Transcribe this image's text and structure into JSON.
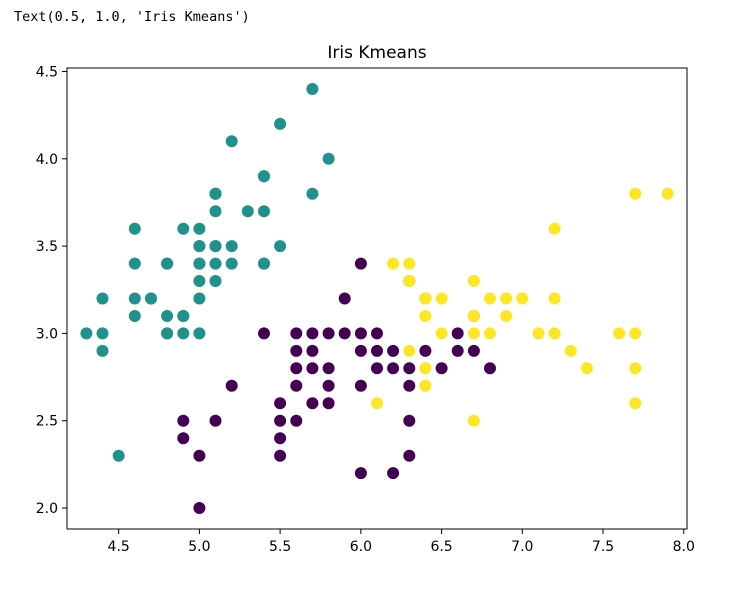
{
  "output_text": "Text(0.5, 1.0, 'Iris Kmeans')",
  "chart_data": {
    "type": "scatter",
    "title": "Iris Kmeans",
    "xlabel": "",
    "ylabel": "",
    "xlim": [
      4.18,
      8.02
    ],
    "ylim": [
      1.88,
      4.52
    ],
    "xticks": [
      "4.5",
      "5.0",
      "5.5",
      "6.0",
      "6.5",
      "7.0",
      "7.5",
      "8.0"
    ],
    "yticks": [
      "2.0",
      "2.5",
      "3.0",
      "3.5",
      "4.0",
      "4.5"
    ],
    "grid": false,
    "legend": "none",
    "clusters": [
      {
        "color": "#21918c",
        "points": [
          [
            5.1,
            3.5
          ],
          [
            4.9,
            3.0
          ],
          [
            4.7,
            3.2
          ],
          [
            4.6,
            3.1
          ],
          [
            5.0,
            3.6
          ],
          [
            5.4,
            3.9
          ],
          [
            4.6,
            3.4
          ],
          [
            5.0,
            3.4
          ],
          [
            4.4,
            2.9
          ],
          [
            4.9,
            3.1
          ],
          [
            5.4,
            3.7
          ],
          [
            4.8,
            3.4
          ],
          [
            4.8,
            3.0
          ],
          [
            4.3,
            3.0
          ],
          [
            5.8,
            4.0
          ],
          [
            5.7,
            4.4
          ],
          [
            5.4,
            3.9
          ],
          [
            5.1,
            3.5
          ],
          [
            5.7,
            3.8
          ],
          [
            5.1,
            3.8
          ],
          [
            5.4,
            3.4
          ],
          [
            5.1,
            3.7
          ],
          [
            4.6,
            3.6
          ],
          [
            5.1,
            3.3
          ],
          [
            4.8,
            3.4
          ],
          [
            5.0,
            3.0
          ],
          [
            5.0,
            3.4
          ],
          [
            5.2,
            3.5
          ],
          [
            5.2,
            3.4
          ],
          [
            4.7,
            3.2
          ],
          [
            4.8,
            3.1
          ],
          [
            5.4,
            3.4
          ],
          [
            5.2,
            4.1
          ],
          [
            5.5,
            4.2
          ],
          [
            4.9,
            3.1
          ],
          [
            5.0,
            3.2
          ],
          [
            5.5,
            3.5
          ],
          [
            4.9,
            3.6
          ],
          [
            4.4,
            3.0
          ],
          [
            5.1,
            3.4
          ],
          [
            5.0,
            3.5
          ],
          [
            4.5,
            2.3
          ],
          [
            4.4,
            3.2
          ],
          [
            5.0,
            3.5
          ],
          [
            5.1,
            3.8
          ],
          [
            4.8,
            3.0
          ],
          [
            5.1,
            3.8
          ],
          [
            4.6,
            3.2
          ],
          [
            5.3,
            3.7
          ],
          [
            5.0,
            3.3
          ]
        ]
      },
      {
        "color": "#440154",
        "points": [
          [
            6.0,
            3.4
          ],
          [
            5.9,
            3.2
          ],
          [
            5.4,
            3.0
          ],
          [
            5.6,
            3.0
          ],
          [
            5.7,
            3.0
          ],
          [
            5.8,
            3.0
          ],
          [
            6.0,
            3.0
          ],
          [
            6.1,
            3.0
          ],
          [
            6.6,
            3.0
          ],
          [
            5.9,
            3.0
          ],
          [
            6.8,
            2.8
          ],
          [
            6.7,
            2.9
          ],
          [
            6.6,
            2.9
          ],
          [
            6.4,
            2.9
          ],
          [
            6.2,
            2.9
          ],
          [
            6.1,
            2.9
          ],
          [
            6.0,
            2.9
          ],
          [
            5.7,
            2.9
          ],
          [
            5.6,
            2.9
          ],
          [
            6.5,
            2.8
          ],
          [
            6.3,
            2.8
          ],
          [
            6.2,
            2.8
          ],
          [
            6.1,
            2.8
          ],
          [
            5.8,
            2.8
          ],
          [
            5.7,
            2.8
          ],
          [
            5.6,
            2.8
          ],
          [
            6.3,
            2.7
          ],
          [
            6.0,
            2.7
          ],
          [
            5.8,
            2.7
          ],
          [
            5.6,
            2.7
          ],
          [
            5.2,
            2.7
          ],
          [
            6.3,
            2.5
          ],
          [
            5.6,
            2.5
          ],
          [
            5.5,
            2.5
          ],
          [
            5.1,
            2.5
          ],
          [
            4.9,
            2.5
          ],
          [
            5.8,
            2.6
          ],
          [
            5.7,
            2.6
          ],
          [
            5.5,
            2.6
          ],
          [
            5.5,
            2.4
          ],
          [
            4.9,
            2.4
          ],
          [
            6.3,
            2.3
          ],
          [
            5.5,
            2.3
          ],
          [
            5.0,
            2.3
          ],
          [
            6.0,
            2.2
          ],
          [
            6.2,
            2.2
          ],
          [
            5.0,
            2.0
          ],
          [
            6.3,
            3.3
          ],
          [
            6.4,
            3.2
          ],
          [
            6.7,
            3.1
          ]
        ]
      },
      {
        "color": "#fde725",
        "points": [
          [
            7.9,
            3.8
          ],
          [
            7.7,
            3.8
          ],
          [
            7.2,
            3.6
          ],
          [
            6.2,
            3.4
          ],
          [
            6.3,
            3.4
          ],
          [
            6.3,
            3.3
          ],
          [
            6.7,
            3.3
          ],
          [
            6.4,
            3.2
          ],
          [
            6.5,
            3.2
          ],
          [
            6.8,
            3.2
          ],
          [
            6.9,
            3.2
          ],
          [
            7.0,
            3.2
          ],
          [
            7.2,
            3.2
          ],
          [
            6.4,
            3.1
          ],
          [
            6.7,
            3.1
          ],
          [
            6.9,
            3.1
          ],
          [
            6.5,
            3.0
          ],
          [
            6.7,
            3.0
          ],
          [
            6.8,
            3.0
          ],
          [
            7.1,
            3.0
          ],
          [
            7.2,
            3.0
          ],
          [
            7.6,
            3.0
          ],
          [
            7.7,
            3.0
          ],
          [
            6.3,
            2.9
          ],
          [
            7.3,
            2.9
          ],
          [
            6.4,
            2.8
          ],
          [
            7.4,
            2.8
          ],
          [
            7.7,
            2.8
          ],
          [
            6.4,
            2.7
          ],
          [
            6.1,
            2.6
          ],
          [
            7.7,
            2.6
          ],
          [
            6.7,
            2.5
          ],
          [
            6.3,
            3.3
          ],
          [
            6.4,
            3.2
          ],
          [
            6.7,
            3.1
          ]
        ]
      }
    ]
  }
}
